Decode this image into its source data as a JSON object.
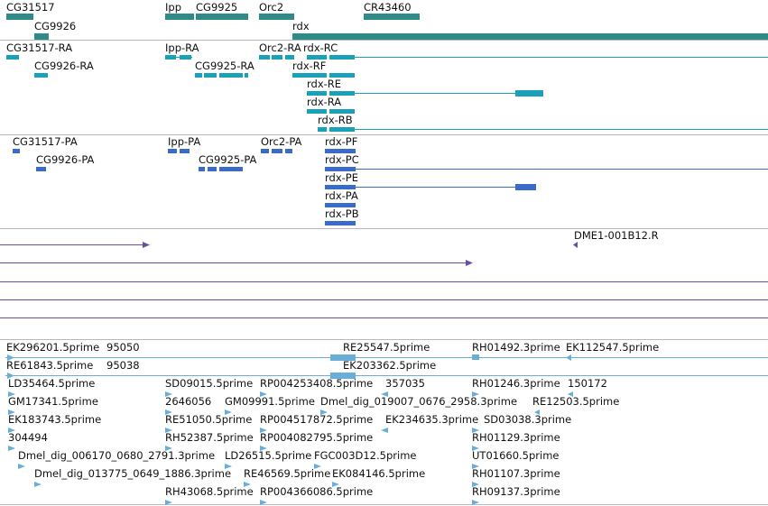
{
  "colors": {
    "genes": "#2e8b88",
    "transcripts": "#1aa0b8",
    "proteins": "#3a6bc9",
    "alignments": "#6a4fa0",
    "ests": "#68aed9",
    "separator": "#b8b8b8"
  },
  "genes_track": {
    "labels": {
      "cg31517": "CG31517",
      "cg9926": "CG9926",
      "ipp": "Ipp",
      "cg9925": "CG9925",
      "orc2": "Orc2",
      "cr43460": "CR43460",
      "rdx": "rdx"
    }
  },
  "transcripts_track": {
    "labels": {
      "cg31517_ra": "CG31517-RA",
      "cg9926_ra": "CG9926-RA",
      "ipp_ra": "Ipp-RA",
      "cg9925_ra": "CG9925-RA",
      "orc2_ra": "Orc2-RA",
      "rdx_rc": "rdx-RC",
      "rdx_rf": "rdx-RF",
      "rdx_re": "rdx-RE",
      "rdx_ra": "rdx-RA",
      "rdx_rb": "rdx-RB"
    }
  },
  "proteins_track": {
    "labels": {
      "cg31517_pa": "CG31517-PA",
      "cg9926_pa": "CG9926-PA",
      "ipp_pa": "Ipp-PA",
      "cg9925_pa": "CG9925-PA",
      "orc2_pa": "Orc2-PA",
      "rdx_pf": "rdx-PF",
      "rdx_pc": "rdx-PC",
      "rdx_pe": "rdx-PE",
      "rdx_pa": "rdx-PA",
      "rdx_pb": "rdx-PB"
    }
  },
  "alignments_track": {
    "labels": {
      "dme1": "DME1-001B12.R"
    }
  },
  "ests_track": {
    "labels": {
      "ek296201": "EK296201.5prime",
      "n95050": "95050",
      "re25547": "RE25547.5prime",
      "rh01492": "RH01492.3prime",
      "ek112547": "EK112547.5prime",
      "re61843": "RE61843.5prime",
      "n95038": "95038",
      "ek203362": "EK203362.5prime",
      "ld35464": "LD35464.5prime",
      "sd09015": "SD09015.5prime",
      "rp004253408": "RP004253408.5prime",
      "n357035": "357035",
      "rh01246": "RH01246.3prime",
      "n150172": "150172",
      "gm17341": "GM17341.5prime",
      "n2646056": "2646056",
      "gm09991": "GM09991.5prime",
      "dmel_019007": "Dmel_dig_019007_0676_2958.3prime",
      "re12503": "RE12503.5prime",
      "ek183743": "EK183743.5prime",
      "re51050": "RE51050.5prime",
      "rp004517872": "RP004517872.5prime",
      "ek234635": "EK234635.3prime",
      "sd03038": "SD03038.3prime",
      "n304494": "304494",
      "rh52387": "RH52387.5prime",
      "rp004082795": "RP004082795.5prime",
      "rh01129": "RH01129.3prime",
      "dmel_006170": "Dmel_dig_006170_0680_2791.3prime",
      "ld26515": "LD26515.5prime",
      "fgc003d12": "FGC003D12.5prime",
      "ut01660": "UT01660.5prime",
      "dmel_013775": "Dmel_dig_013775_0649_1886.3prime",
      "re46569": "RE46569.5prime",
      "ek084146": "EK084146.5prime",
      "rh01107": "RH01107.3prime",
      "rh43068": "RH43068.5prime",
      "rp004366086": "RP004366086.5prime",
      "rh09137": "RH09137.3prime"
    }
  }
}
